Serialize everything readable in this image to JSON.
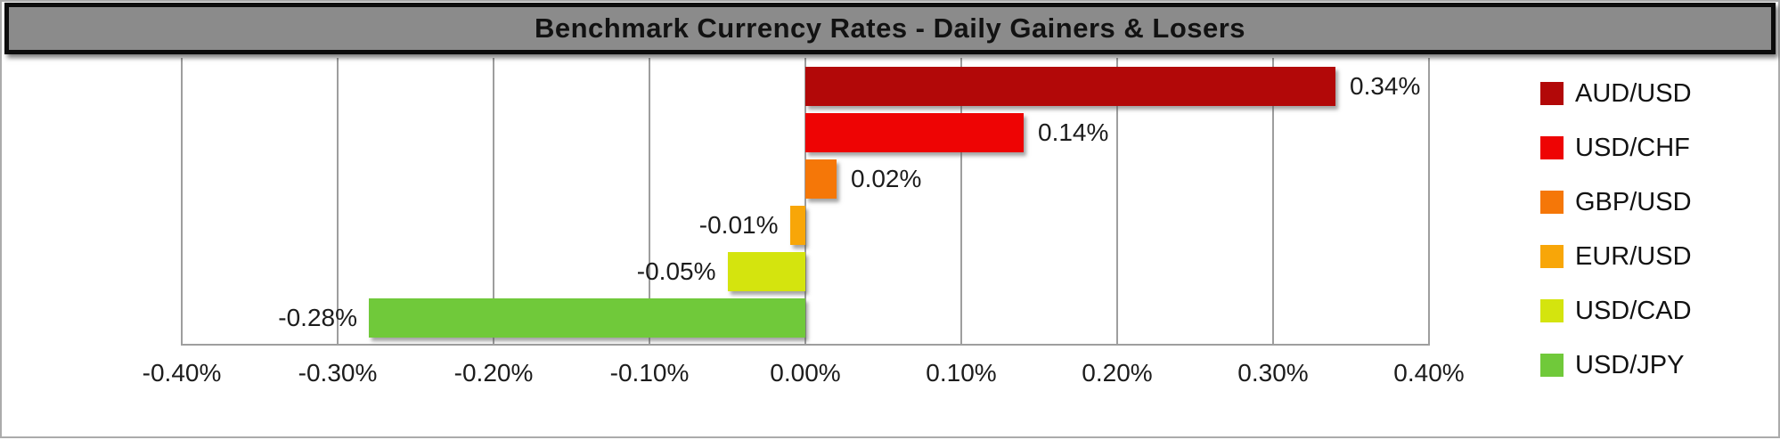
{
  "title_bar": {
    "text": "Benchmark Currency Rates - Daily Gainers & Losers"
  },
  "chart_data": {
    "type": "bar",
    "orientation": "horizontal",
    "title": "Benchmark Currency Rates - Daily Gainers & Losers",
    "categories": [
      "AUD/USD",
      "USD/CHF",
      "GBP/USD",
      "EUR/USD",
      "USD/CAD",
      "USD/JPY"
    ],
    "values": [
      0.34,
      0.14,
      0.02,
      -0.01,
      -0.05,
      -0.28
    ],
    "value_labels": [
      "0.34%",
      "0.14%",
      "0.02%",
      "-0.01%",
      "-0.05%",
      "-0.28%"
    ],
    "series_colors": [
      "#b20808",
      "#ee0404",
      "#f57708",
      "#f8a608",
      "#d4e40e",
      "#70c93a"
    ],
    "xlim": [
      -0.4,
      0.4
    ],
    "x_ticks": [
      "-0.40%",
      "-0.30%",
      "-0.20%",
      "-0.10%",
      "0.00%",
      "0.10%",
      "0.20%",
      "0.30%",
      "0.40%"
    ],
    "x_tick_values": [
      -0.4,
      -0.3,
      -0.2,
      -0.1,
      0.0,
      0.1,
      0.2,
      0.3,
      0.4
    ],
    "xlabel": "",
    "ylabel": "",
    "grid": true,
    "legend_position": "right",
    "legend_entries": [
      "AUD/USD",
      "USD/CHF",
      "GBP/USD",
      "EUR/USD",
      "USD/CAD",
      "USD/JPY"
    ]
  },
  "colors": {
    "title_background": "#8b8b8b",
    "title_border": "#0c0c0c",
    "gridline": "#9e9e9e",
    "label_text": "#1c1c1c",
    "frame_border": "#ababab"
  }
}
